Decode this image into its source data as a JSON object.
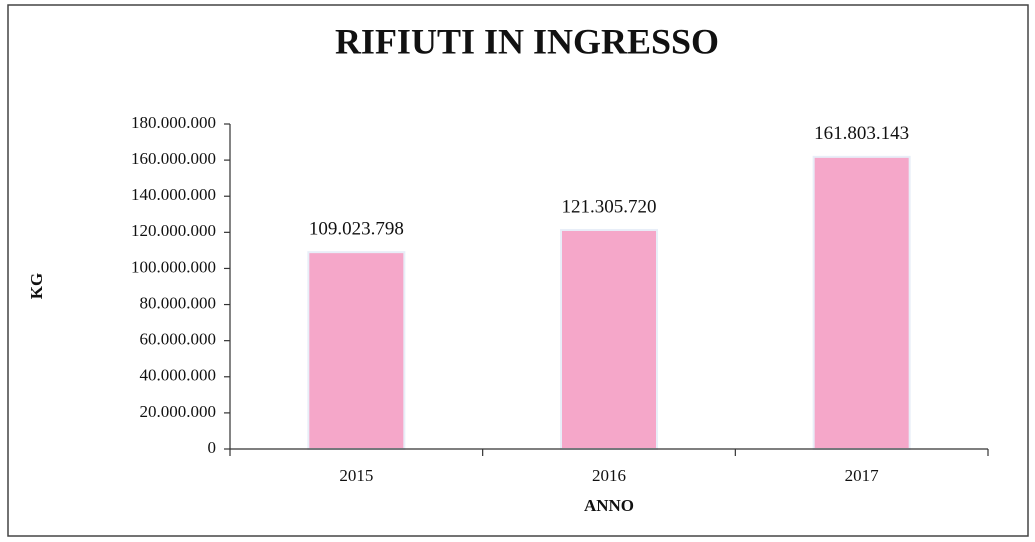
{
  "chart_data": {
    "type": "bar",
    "title": "RIFIUTI IN INGRESSO",
    "x_label": "ANNO",
    "y_label": "KG",
    "categories": [
      "2015",
      "2016",
      "2017"
    ],
    "values": [
      109023798,
      121305720,
      161803143
    ],
    "value_labels": [
      "109.023.798",
      "121.305.720",
      "161.803.143"
    ],
    "color": "#f5a7c9",
    "ylim": [
      0,
      180000000
    ],
    "yticks": [
      0,
      {
        "value": 20000000,
        "label": "20.000.000"
      },
      {
        "value": 40000000,
        "label": "40.000.000"
      },
      {
        "value": 60000000,
        "label": "60.000.000"
      },
      {
        "value": 80000000,
        "label": "80.000.000"
      },
      {
        "value": 100000000,
        "label": "100.000.000"
      },
      {
        "value": 120000000,
        "label": "120.000.000"
      },
      {
        "value": 140000000,
        "label": "140.000.000"
      },
      {
        "value": 160000000,
        "label": "160.000.000"
      },
      {
        "value": 180000000,
        "label": "180.000.000"
      }
    ],
    "grid": false
  }
}
